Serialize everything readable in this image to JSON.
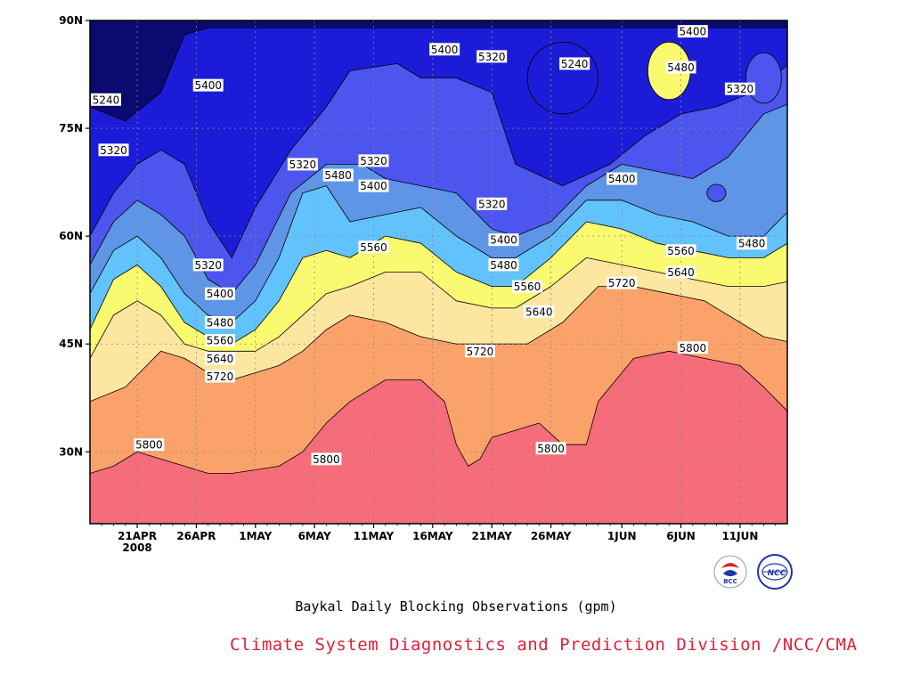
{
  "chart_data": {
    "type": "heatmap",
    "title": "Baykal Daily Blocking Observations (gpm)",
    "xlabel": "",
    "ylabel": "",
    "y_ticks": [
      "30N",
      "45N",
      "60N",
      "75N",
      "90N"
    ],
    "y_range": [
      20,
      90
    ],
    "x_ticks": [
      "21APR",
      "26APR",
      "1MAY",
      "6MAY",
      "11MAY",
      "16MAY",
      "21MAY",
      "26MAY",
      "1JUN",
      "6JUN",
      "11JUN"
    ],
    "x_year_label": "2008",
    "x_range": [
      "2008-04-17",
      "2008-06-15"
    ],
    "contour_levels": [
      5240,
      5320,
      5400,
      5480,
      5560,
      5640,
      5720,
      5800
    ],
    "grid": "dotted",
    "colors": {
      "below_5240": "#0a0a70",
      "5240_5320": "#1c1cd8",
      "5320_5400": "#4c55ee",
      "5400_5480": "#5e95e6",
      "5480_5560": "#62c3fc",
      "5560_5640": "#fafa70",
      "5640_5720": "#fde6a0",
      "5720_5800": "#fba26b",
      "above_5800": "#fa7442",
      "top_band": "#f56c7a"
    },
    "contour_labels": [
      {
        "value": "5240",
        "lat": 79,
        "date": "2008-04-17"
      },
      {
        "value": "5320",
        "lat": 72,
        "date": "2008-04-19"
      },
      {
        "value": "5400",
        "lat": 81,
        "date": "2008-04-27"
      },
      {
        "value": "5320",
        "lat": 56,
        "date": "2008-04-27"
      },
      {
        "value": "5400",
        "lat": 52,
        "date": "2008-04-28"
      },
      {
        "value": "5480",
        "lat": 48,
        "date": "2008-04-28"
      },
      {
        "value": "5560",
        "lat": 45.5,
        "date": "2008-04-28"
      },
      {
        "value": "5640",
        "lat": 43,
        "date": "2008-04-28"
      },
      {
        "value": "5720",
        "lat": 40.5,
        "date": "2008-04-28"
      },
      {
        "value": "5800",
        "lat": 31,
        "date": "2008-04-22"
      },
      {
        "value": "5320",
        "lat": 70,
        "date": "2008-05-05"
      },
      {
        "value": "5480",
        "lat": 68.5,
        "date": "2008-05-08"
      },
      {
        "value": "5320",
        "lat": 70.5,
        "date": "2008-05-11"
      },
      {
        "value": "5400",
        "lat": 67,
        "date": "2008-05-11"
      },
      {
        "value": "5560",
        "lat": 58.5,
        "date": "2008-05-11"
      },
      {
        "value": "5800",
        "lat": 29,
        "date": "2008-05-07"
      },
      {
        "value": "5400",
        "lat": 86,
        "date": "2008-05-17"
      },
      {
        "value": "5320",
        "lat": 85,
        "date": "2008-05-21"
      },
      {
        "value": "5240",
        "lat": 84,
        "date": "2008-05-28"
      },
      {
        "value": "5320",
        "lat": 64.5,
        "date": "2008-05-21"
      },
      {
        "value": "5400",
        "lat": 59.5,
        "date": "2008-05-22"
      },
      {
        "value": "5480",
        "lat": 56,
        "date": "2008-05-22"
      },
      {
        "value": "5560",
        "lat": 53,
        "date": "2008-05-24"
      },
      {
        "value": "5640",
        "lat": 49.5,
        "date": "2008-05-25"
      },
      {
        "value": "5720",
        "lat": 44,
        "date": "2008-05-20"
      },
      {
        "value": "5800",
        "lat": 30.5,
        "date": "2008-05-26"
      },
      {
        "value": "5400",
        "lat": 88.5,
        "date": "2008-06-07"
      },
      {
        "value": "5480",
        "lat": 83.5,
        "date": "2008-06-06"
      },
      {
        "value": "5320",
        "lat": 80.5,
        "date": "2008-06-11"
      },
      {
        "value": "5400",
        "lat": 68,
        "date": "2008-06-01"
      },
      {
        "value": "5480",
        "lat": 59,
        "date": "2008-06-12"
      },
      {
        "value": "5560",
        "lat": 58,
        "date": "2008-06-06"
      },
      {
        "value": "5640",
        "lat": 55,
        "date": "2008-06-06"
      },
      {
        "value": "5720",
        "lat": 53.5,
        "date": "2008-06-01"
      },
      {
        "value": "5800",
        "lat": 44.5,
        "date": "2008-06-07"
      }
    ]
  },
  "footer": {
    "caption": "Baykal Daily Blocking Observations (gpm)",
    "credit": "Climate System Diagnostics and Prediction Division /NCC/CMA",
    "logo_left_text": "BCC",
    "logo_right_text": "NCC"
  }
}
